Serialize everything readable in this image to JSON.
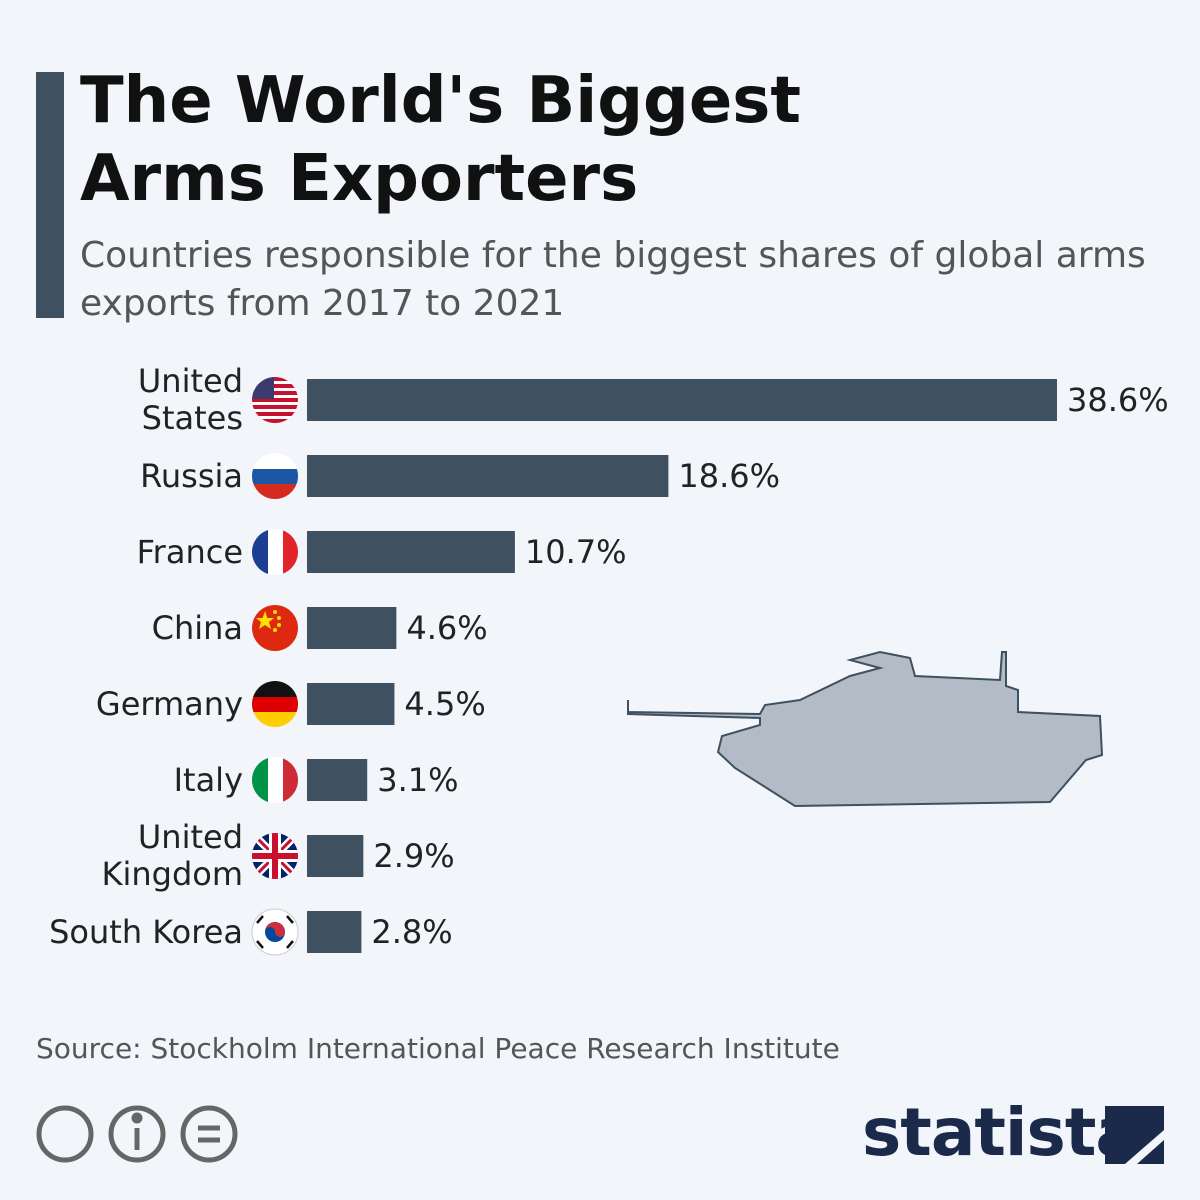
{
  "chart_data": {
    "type": "bar",
    "orientation": "horizontal",
    "title": "The World's Biggest Arms Exporters",
    "subtitle": "Countries responsible for the biggest shares of global arms exports from 2017 to 2021",
    "categories": [
      "United States",
      "Russia",
      "France",
      "China",
      "Germany",
      "Italy",
      "United Kingdom",
      "South Korea"
    ],
    "values": [
      38.6,
      18.6,
      10.7,
      4.6,
      4.5,
      3.1,
      2.9,
      2.8
    ],
    "value_labels": [
      "38.6%",
      "18.6%",
      "10.7%",
      "4.6%",
      "4.5%",
      "3.1%",
      "2.9%",
      "2.8%"
    ],
    "color": "#3f5060",
    "source": "Source: Stockholm International Peace Research Institute",
    "brand": "statista"
  }
}
